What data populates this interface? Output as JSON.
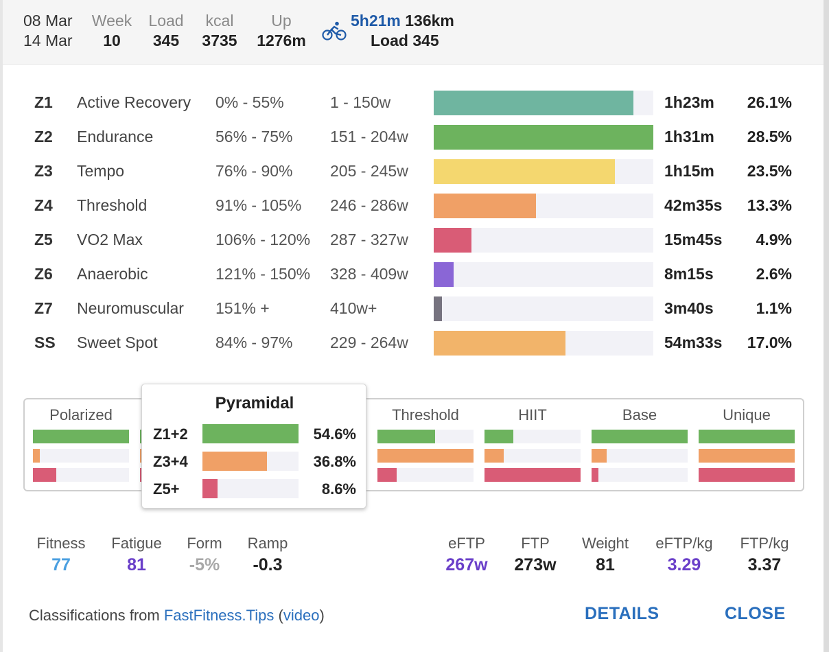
{
  "header": {
    "date_from": "08 Mar",
    "date_to": "14 Mar",
    "week_label": "Week",
    "week_value": "10",
    "load_label": "Load",
    "load_value": "345",
    "kcal_label": "kcal",
    "kcal_value": "3735",
    "up_label": "Up",
    "up_value": "1276m",
    "sport_icon": "bike-icon",
    "duration": "5h21m",
    "distance": "136km",
    "sport_load": "Load 345"
  },
  "zones": [
    {
      "id": "Z1",
      "name": "Active Recovery",
      "pct": "0% - 55%",
      "watts": "1 - 150w",
      "time": "1h23m",
      "share": "26.1%",
      "fill": 0.91,
      "color": "#6fb5a0"
    },
    {
      "id": "Z2",
      "name": "Endurance",
      "pct": "56% - 75%",
      "watts": "151 - 204w",
      "time": "1h31m",
      "share": "28.5%",
      "fill": 1.0,
      "color": "#6db35e"
    },
    {
      "id": "Z3",
      "name": "Tempo",
      "pct": "76% - 90%",
      "watts": "205 - 245w",
      "time": "1h15m",
      "share": "23.5%",
      "fill": 0.825,
      "color": "#f4d76f"
    },
    {
      "id": "Z4",
      "name": "Threshold",
      "pct": "91% - 105%",
      "watts": "246 - 286w",
      "time": "42m35s",
      "share": "13.3%",
      "fill": 0.467,
      "color": "#f0a066"
    },
    {
      "id": "Z5",
      "name": "VO2 Max",
      "pct": "106% - 120%",
      "watts": "287 - 327w",
      "time": "15m45s",
      "share": "4.9%",
      "fill": 0.172,
      "color": "#d95c76"
    },
    {
      "id": "Z6",
      "name": "Anaerobic",
      "pct": "121% - 150%",
      "watts": "328 - 409w",
      "time": "8m15s",
      "share": "2.6%",
      "fill": 0.09,
      "color": "#8a66d6"
    },
    {
      "id": "Z7",
      "name": "Neuromuscular",
      "pct": "151% +",
      "watts": "410w+",
      "time": "3m40s",
      "share": "1.1%",
      "fill": 0.037,
      "color": "#76737f"
    },
    {
      "id": "SS",
      "name": "Sweet Spot",
      "pct": "84% - 97%",
      "watts": "229 - 264w",
      "time": "54m33s",
      "share": "17.0%",
      "fill": 0.6,
      "color": "#f2b46a"
    }
  ],
  "models": [
    {
      "name": "Polarized",
      "fills": [
        1.0,
        0.07,
        0.24
      ]
    },
    {
      "name": "Pyramidal",
      "fills": [
        1.0,
        0.67,
        0.16
      ]
    },
    {
      "name": "Threshold",
      "fills": [
        0.6,
        1.0,
        0.2
      ]
    },
    {
      "name": "HIIT",
      "fills": [
        0.3,
        0.2,
        1.0
      ]
    },
    {
      "name": "Base",
      "fills": [
        1.0,
        0.16,
        0.07
      ]
    },
    {
      "name": "Unique",
      "fills": [
        1.0,
        1.0,
        1.0
      ]
    }
  ],
  "model_colors": [
    "#6db35e",
    "#f0a066",
    "#d95c76"
  ],
  "popup": {
    "title": "Pyramidal",
    "rows": [
      {
        "label": "Z1+2",
        "value": "54.6%",
        "fill": 1.0,
        "color": "#6db35e"
      },
      {
        "label": "Z3+4",
        "value": "36.8%",
        "fill": 0.67,
        "color": "#f0a066"
      },
      {
        "label": "Z5+",
        "value": "8.6%",
        "fill": 0.16,
        "color": "#d95c76"
      }
    ]
  },
  "stats": {
    "fitness_label": "Fitness",
    "fitness_value": "77",
    "fatigue_label": "Fatigue",
    "fatigue_value": "81",
    "form_label": "Form",
    "form_value": "-5%",
    "ramp_label": "Ramp",
    "ramp_value": "-0.3",
    "eftp_label": "eFTP",
    "eftp_value": "267w",
    "ftp_label": "FTP",
    "ftp_value": "273w",
    "weight_label": "Weight",
    "weight_value": "81",
    "eftpkg_label": "eFTP/kg",
    "eftpkg_value": "3.29",
    "ftpkg_label": "FTP/kg",
    "ftpkg_value": "3.37"
  },
  "stat_colors": {
    "fitness": "#4a9fe0",
    "fatigue": "#6a3fc9",
    "form": "#a8a8a8",
    "purple": "#6a3fc9",
    "dark": "#222222"
  },
  "footer": {
    "prefix": "Classifications from ",
    "link": "FastFitness.Tips",
    "open_paren": " (",
    "video": "video",
    "close_paren": ")",
    "details": "DETAILS",
    "close": "CLOSE"
  }
}
